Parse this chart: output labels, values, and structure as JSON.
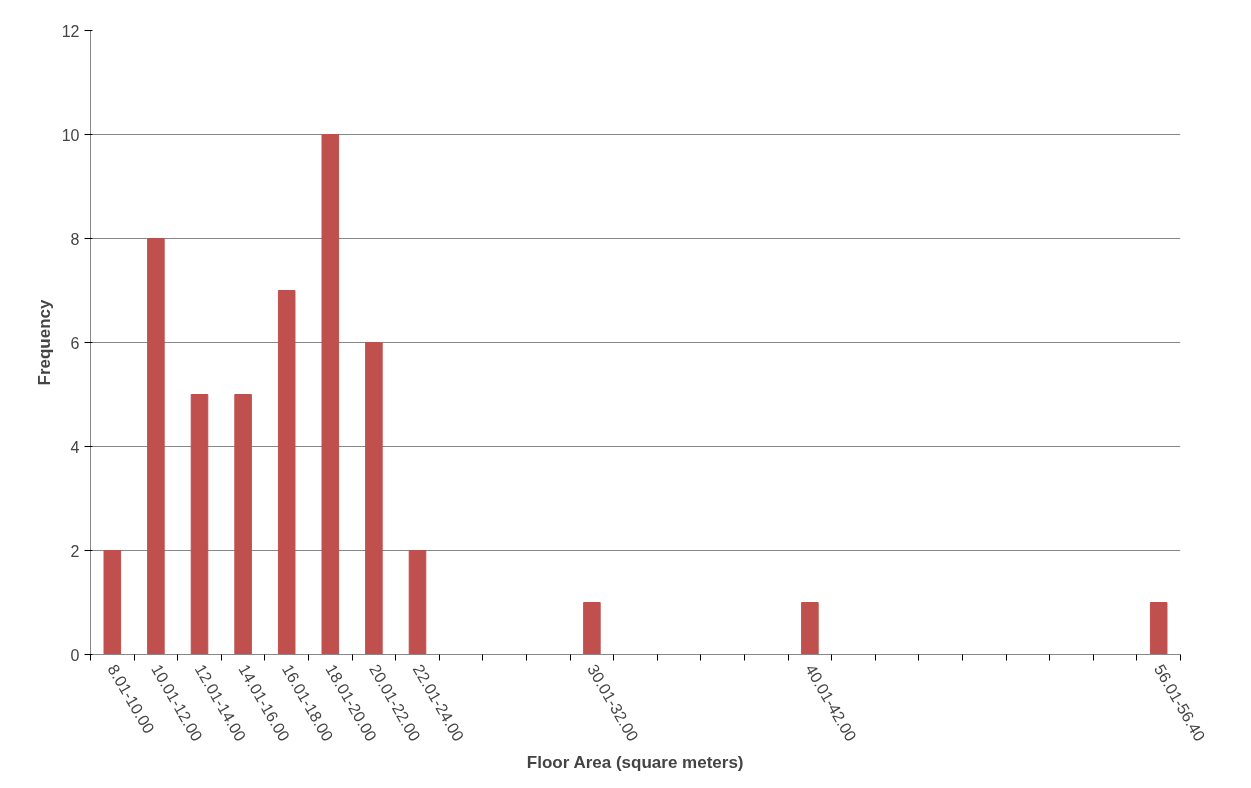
{
  "chart_data": {
    "type": "bar",
    "xlabel": "Floor Area (square meters)",
    "ylabel": "Frequency",
    "categories": [
      "8.01-10.00",
      "10.01-12.00",
      "12.01-14.00",
      "14.01-16.00",
      "16.01-18.00",
      "18.01-20.00",
      "20.01-22.00",
      "22.01-24.00",
      null,
      null,
      null,
      "30.01-32.00",
      null,
      null,
      null,
      null,
      "40.01-42.00",
      null,
      null,
      null,
      null,
      null,
      null,
      null,
      "56.01-56.40"
    ],
    "values": [
      2,
      8,
      5,
      5,
      7,
      10,
      6,
      2,
      null,
      null,
      null,
      1,
      null,
      null,
      null,
      null,
      1,
      null,
      null,
      null,
      null,
      null,
      null,
      null,
      1
    ],
    "color": "#c0504d",
    "ylim": [
      0,
      12
    ],
    "yticks": [
      0,
      2,
      4,
      6,
      8,
      10,
      12
    ],
    "grid": "y"
  }
}
